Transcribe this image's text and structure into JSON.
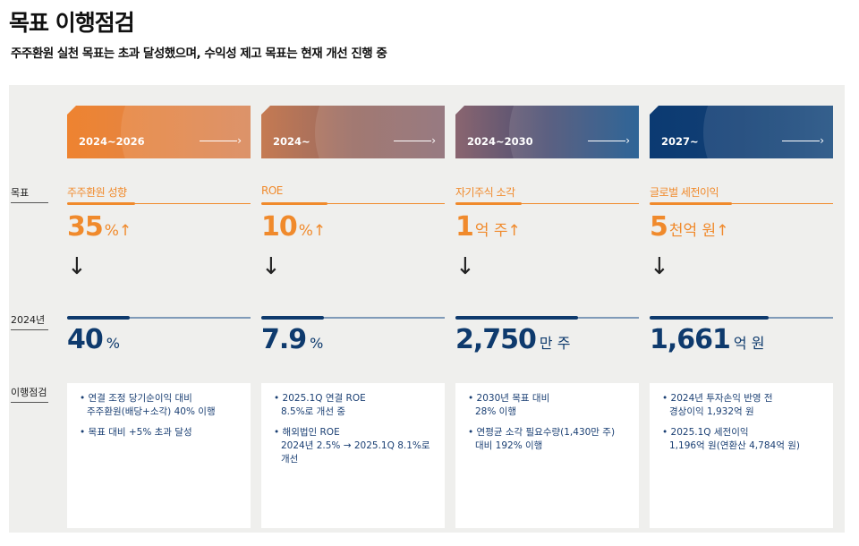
{
  "title": "목표 이행점검",
  "subtitle": "주주환원 실천 목표는 초과 달성했으며, 수익성 제고 목표는 현재 개선 진행 중",
  "row_labels": {
    "goal": "목표",
    "year": "2024년",
    "check": "이행점검"
  },
  "colors": {
    "orange": "#f08a2c",
    "navy": "#0e3a6d"
  },
  "columns": [
    {
      "period": "2024~2026",
      "goal_label": "주주환원 성향",
      "goal_value": "35",
      "goal_unit": "%↑",
      "actual_value": "40",
      "actual_unit": "%",
      "goal_progress": 0.37,
      "actual_progress": 0.34,
      "gradient": "linear-gradient(90deg,#ee8330,#d9875a)",
      "notes": [
        "연결 조정 당기순이익 대비\n주주환원(배당+소각) 40% 이행",
        "목표 대비 +5% 초과 달성"
      ]
    },
    {
      "period": "2024~",
      "goal_label": "ROE",
      "goal_value": "10",
      "goal_unit": "%↑",
      "actual_value": "7.9",
      "actual_unit": "%",
      "goal_progress": 0.36,
      "actual_progress": 0.34,
      "gradient": "linear-gradient(90deg,#c57a52,#986a62,#8c6b74)",
      "notes": [
        "2025.1Q 연결 ROE\n8.5%로 개선 중",
        "해외법인 ROE\n2024년 2.5% → 2025.1Q 8.1%로\n개선"
      ]
    },
    {
      "period": "2024~2030",
      "goal_label": "자기주식 소각",
      "goal_value": "1",
      "goal_unit": "억 주↑",
      "actual_value": "2,750",
      "actual_unit": "만 주",
      "goal_progress": 0.36,
      "actual_progress": 0.67,
      "gradient": "linear-gradient(90deg,#8a6570,#4a4f73,#17548c)",
      "notes": [
        "2030년 목표 대비\n28% 이행",
        "연평균 소각 필요수량(1,430만 주)\n대비 192% 이행"
      ]
    },
    {
      "period": "2027~",
      "goal_label": "글로벌 세전이익",
      "goal_value": "5",
      "goal_unit": "천억 원↑",
      "actual_value": "1,661",
      "actual_unit": "억 원",
      "goal_progress": 0.45,
      "actual_progress": 0.65,
      "gradient": "linear-gradient(90deg,#0b3a72,#123f74,#1e4e80)",
      "notes": [
        "2024년 투자손익 반영 전\n경상이익 1,932억 원",
        "2025.1Q 세전이익\n1,196억 원(연환산 4,784억 원)"
      ]
    }
  ]
}
